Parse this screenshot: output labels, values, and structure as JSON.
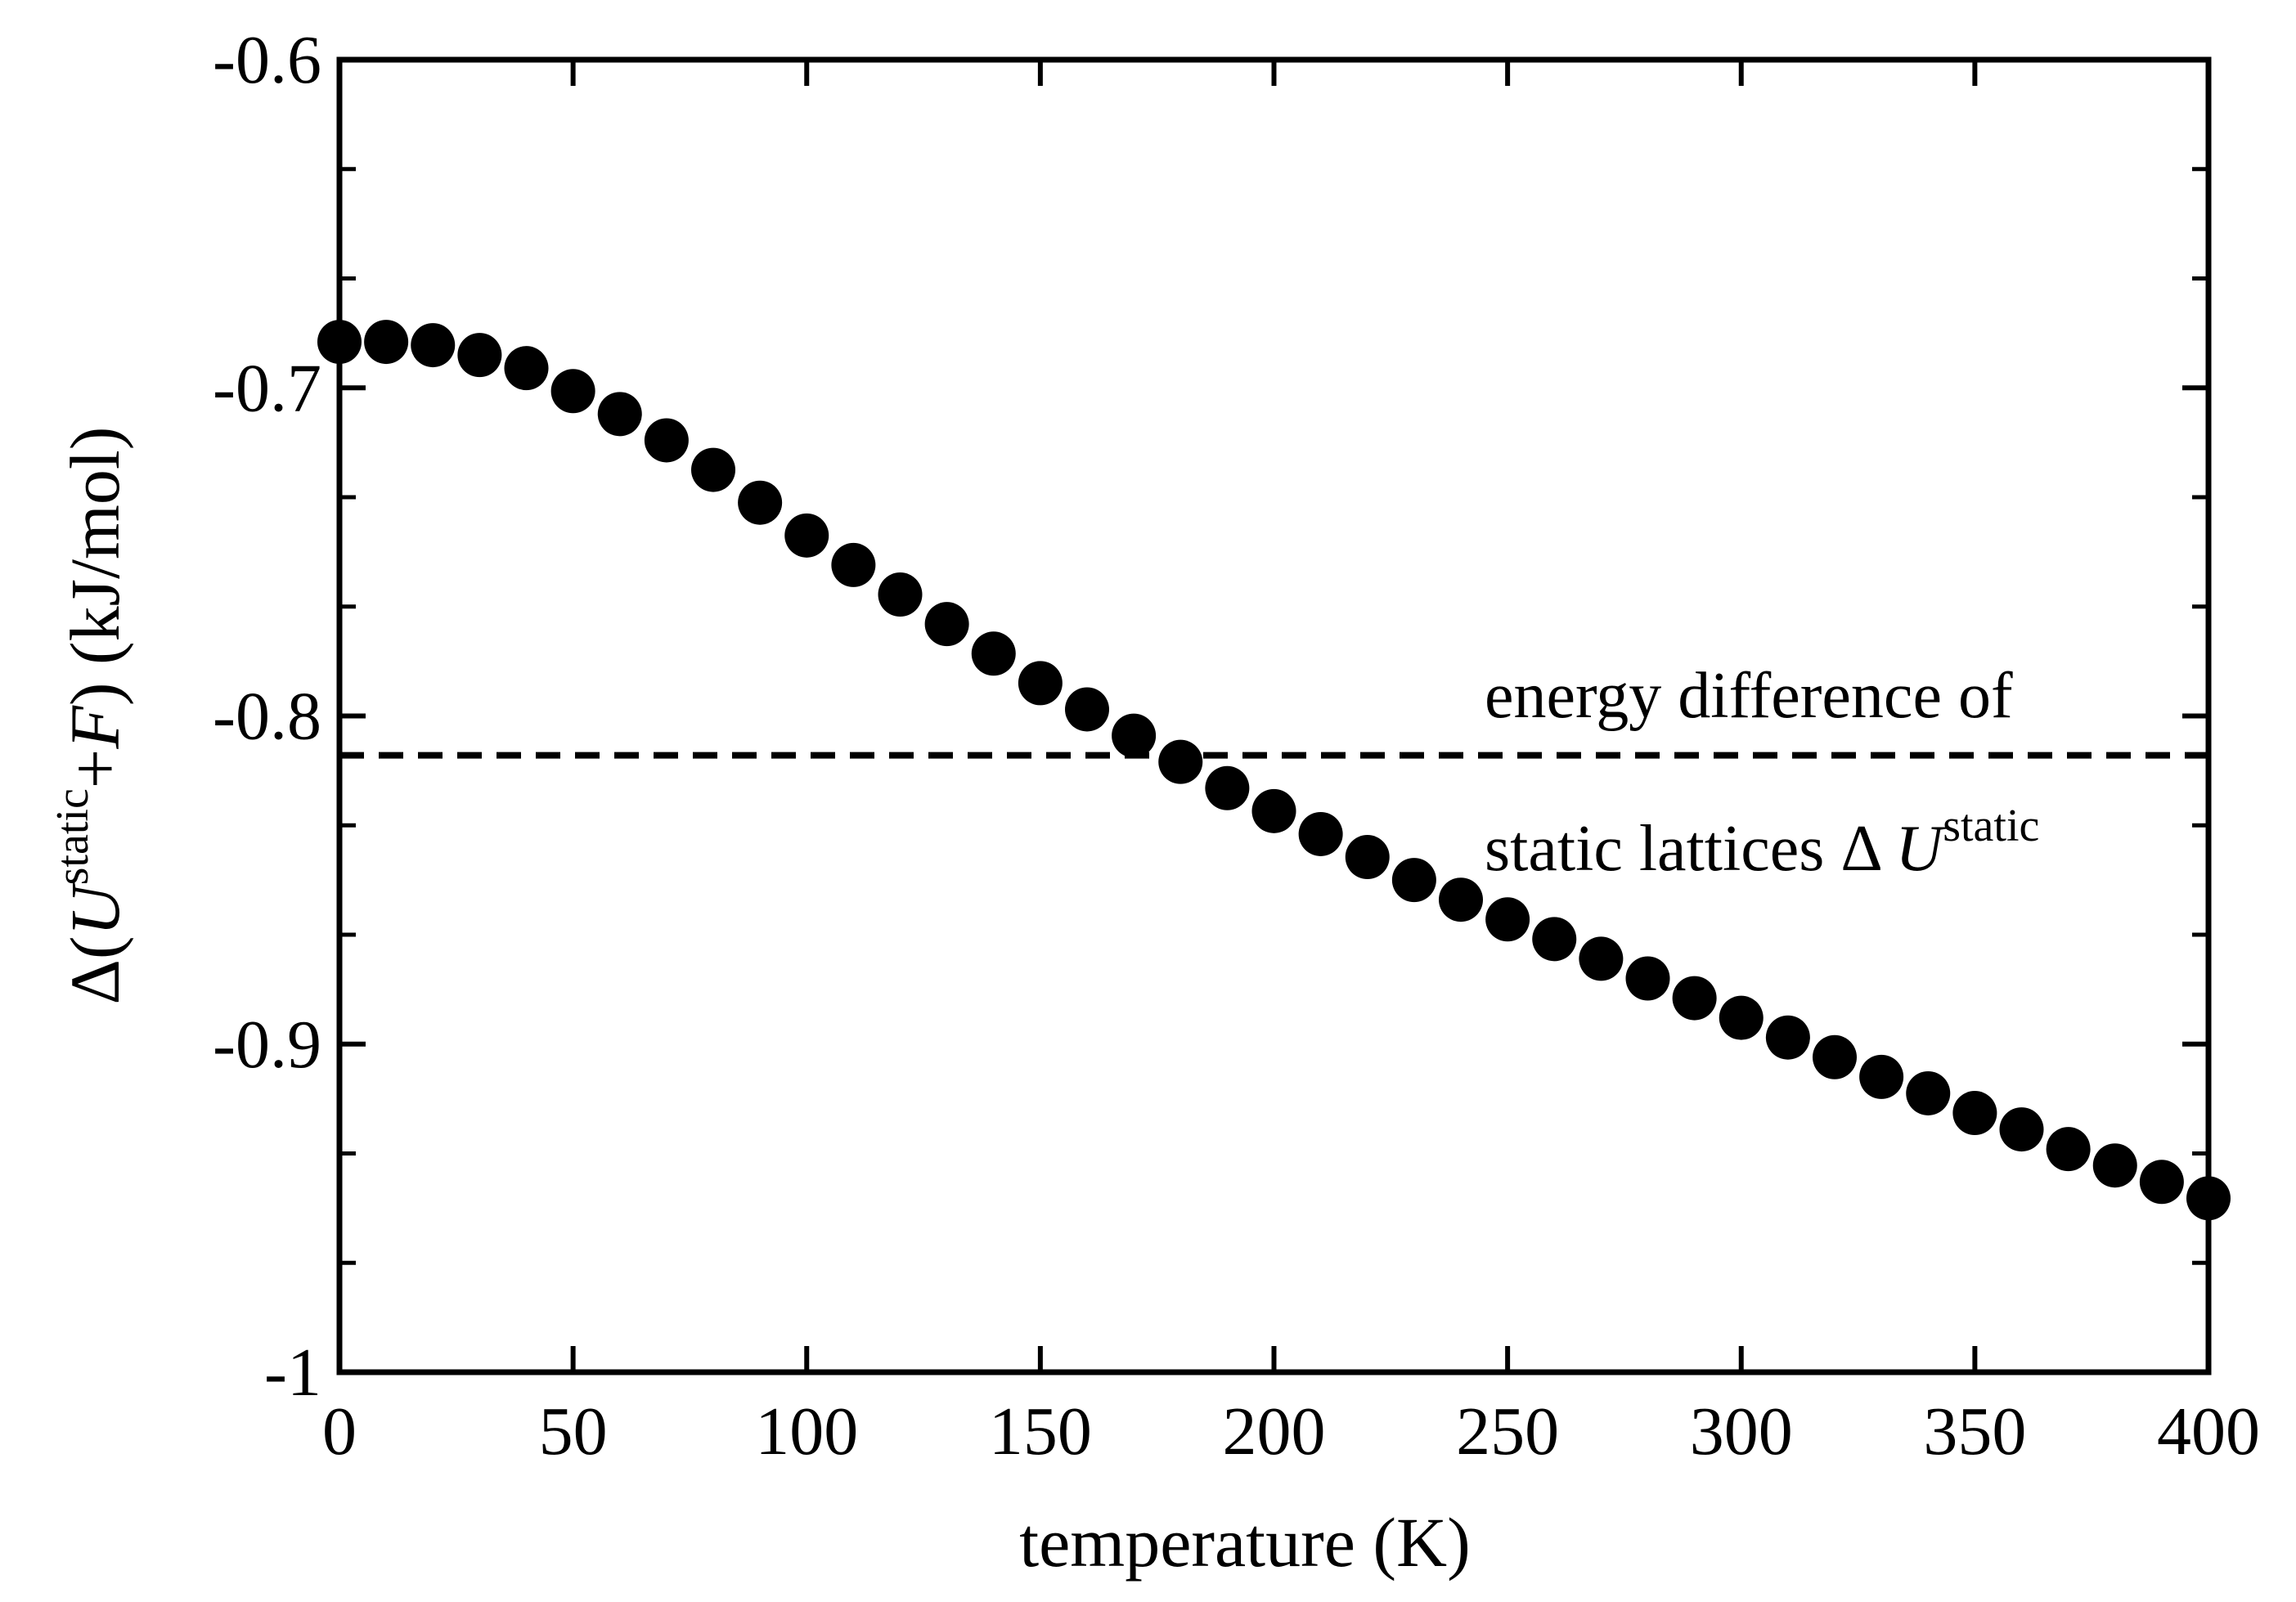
{
  "chart_data": {
    "type": "scatter",
    "title": "",
    "xlabel": "temperature (K)",
    "ylabel": {
      "prefix": "Δ(",
      "u": "U",
      "u_sup": "static",
      "plus": "+",
      "f": "F",
      "suffix": ") (kJ/mol)"
    },
    "xlim": [
      0,
      400
    ],
    "ylim": [
      -1.0,
      -0.6
    ],
    "xticks": [
      0,
      50,
      100,
      150,
      200,
      250,
      300,
      350,
      400
    ],
    "xtick_labels": [
      "0",
      "50",
      "100",
      "150",
      "200",
      "250",
      "300",
      "350",
      "400"
    ],
    "yticks": [
      -1.0,
      -0.9,
      -0.8,
      -0.7,
      -0.6
    ],
    "ytick_labels": [
      "-1",
      "-0.9",
      "-0.8",
      "-0.7",
      "-0.6"
    ],
    "y_minor_step": 0.033333,
    "grid": false,
    "series": [
      {
        "name": "Δ(U static + F)",
        "marker": "filled-circle",
        "color": "#000000",
        "x": [
          0,
          10,
          20,
          30,
          40,
          50,
          60,
          70,
          80,
          90,
          100,
          110,
          120,
          130,
          140,
          150,
          160,
          170,
          180,
          190,
          200,
          210,
          220,
          230,
          240,
          250,
          260,
          270,
          280,
          290,
          300,
          310,
          320,
          330,
          340,
          350,
          360,
          370,
          380,
          390,
          400
        ],
        "y": [
          -0.686,
          -0.686,
          -0.687,
          -0.69,
          -0.694,
          -0.701,
          -0.708,
          -0.716,
          -0.725,
          -0.735,
          -0.745,
          -0.754,
          -0.763,
          -0.772,
          -0.781,
          -0.79,
          -0.798,
          -0.806,
          -0.814,
          -0.822,
          -0.829,
          -0.836,
          -0.843,
          -0.85,
          -0.856,
          -0.862,
          -0.868,
          -0.874,
          -0.88,
          -0.886,
          -0.892,
          -0.898,
          -0.904,
          -0.91,
          -0.915,
          -0.921,
          -0.926,
          -0.932,
          -0.937,
          -0.942,
          -0.947
        ]
      }
    ],
    "reference_line": {
      "y": -0.812,
      "style": "dashed",
      "color": "#000000"
    },
    "annotation": {
      "line1": "energy difference of",
      "line2_prefix": "static lattices Δ ",
      "line2_u": "U",
      "line2_sup": "static"
    }
  }
}
